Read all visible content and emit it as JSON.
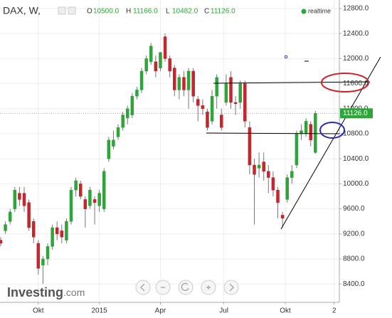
{
  "header": {
    "symbol": "DAX, W,",
    "o_label": "O",
    "open": "10500.0",
    "h_label": "H",
    "high": "11166.0",
    "l_label": "L",
    "low": "10482.0",
    "c_label": "C",
    "close": "11126.0",
    "status": "realtime"
  },
  "brand": {
    "name": "Investing",
    "suffix": ".com"
  },
  "chart_data": {
    "type": "candlestick",
    "open": [
      9100,
      9250,
      9400,
      9600,
      9850,
      9850,
      9700,
      9400,
      9050,
      8700,
      8800,
      9000,
      9300,
      9250,
      9100,
      9400,
      9900,
      10000,
      9750,
      9650,
      9750,
      9650,
      9600,
      10400,
      10600,
      10750,
      10900,
      11050,
      11100,
      11400,
      11500,
      11800,
      11950,
      11950,
      11850,
      12350,
      12000,
      11850,
      11500,
      11700,
      11500,
      11800,
      11350,
      11250,
      11150,
      11000,
      11400,
      11100,
      11300,
      11700,
      11300,
      11300,
      11600,
      10900,
      10300,
      10250,
      10350,
      10200,
      10100,
      9900,
      9500,
      9750,
      10100,
      10300,
      10800,
      10800,
      10950,
      10500
    ],
    "high": [
      9150,
      9400,
      9600,
      9950,
      9950,
      9950,
      9750,
      9450,
      9100,
      8850,
      9050,
      9350,
      9400,
      9350,
      9450,
      9950,
      10100,
      10050,
      9800,
      9950,
      9800,
      9900,
      10250,
      10750,
      10850,
      10950,
      11150,
      11250,
      11450,
      11550,
      11850,
      12050,
      12250,
      12050,
      12100,
      12400,
      12050,
      11900,
      11750,
      11800,
      11850,
      11850,
      11400,
      11350,
      11200,
      11500,
      11750,
      11200,
      11750,
      11800,
      11400,
      11650,
      11650,
      11000,
      10400,
      10500,
      10500,
      10300,
      10200,
      9950,
      9550,
      10150,
      10300,
      10850,
      10950,
      11050,
      11000,
      11166
    ],
    "low": [
      9000,
      9200,
      9350,
      9550,
      9650,
      9550,
      9250,
      9050,
      8550,
      8400,
      8700,
      8950,
      9100,
      9050,
      9050,
      9350,
      9800,
      9750,
      9300,
      9600,
      9350,
      9550,
      9550,
      10350,
      10550,
      10700,
      10850,
      10950,
      11050,
      11350,
      11450,
      11750,
      11900,
      11700,
      11800,
      11950,
      11700,
      11400,
      11350,
      11400,
      11200,
      11300,
      11000,
      11100,
      10850,
      10950,
      11200,
      10850,
      11250,
      11200,
      11100,
      11200,
      10900,
      10150,
      9350,
      10100,
      10050,
      9850,
      9800,
      9450,
      9300,
      9700,
      10000,
      10250,
      10700,
      10750,
      10600,
      10482
    ],
    "close": [
      9050,
      9350,
      9550,
      9900,
      9750,
      9650,
      9300,
      9150,
      8650,
      8800,
      9000,
      9300,
      9200,
      9150,
      9400,
      9900,
      10050,
      9800,
      9600,
      9900,
      9700,
      9850,
      10200,
      10700,
      10700,
      10900,
      11100,
      11200,
      11400,
      11500,
      11800,
      12000,
      12200,
      11800,
      12100,
      12000,
      11800,
      11500,
      11700,
      11500,
      11800,
      11400,
      11250,
      11200,
      10900,
      11400,
      11700,
      10900,
      11600,
      11300,
      11280,
      11600,
      11000,
      10300,
      10150,
      10300,
      10200,
      10100,
      9900,
      9700,
      9450,
      10100,
      10200,
      10800,
      10850,
      11000,
      10700,
      11126
    ],
    "up_color": "#2ea43a",
    "down_color": "#c1272d",
    "xlim": [
      -0.15,
      72.1
    ],
    "xticks": [
      {
        "value": 8,
        "label": "Okt"
      },
      {
        "value": 21,
        "label": "2015"
      },
      {
        "value": 34,
        "label": "Apr"
      },
      {
        "value": 47.5,
        "label": "Jul"
      },
      {
        "value": 60.6,
        "label": "Okt"
      },
      {
        "value": 71,
        "label": "2"
      }
    ],
    "ylim": [
      8107,
      12936
    ],
    "yticks": [
      {
        "value": 12800,
        "label": "12800.0"
      },
      {
        "value": 12400,
        "label": "12400.0"
      },
      {
        "value": 12000,
        "label": "12000.0"
      },
      {
        "value": 11600,
        "label": "11600.0"
      },
      {
        "value": 11200,
        "label": "11200.0"
      },
      {
        "value": 10800,
        "label": "10800.0"
      },
      {
        "value": 10400,
        "label": "10400.0"
      },
      {
        "value": 10000,
        "label": "10000.0"
      },
      {
        "value": 9600,
        "label": "9600.0"
      },
      {
        "value": 9200,
        "label": "9200.0"
      },
      {
        "value": 8800,
        "label": "8800.0"
      },
      {
        "value": 8400,
        "label": "8400.0"
      }
    ],
    "grid": true,
    "last_price": {
      "value": 11126,
      "label": "11126.0"
    }
  }
}
